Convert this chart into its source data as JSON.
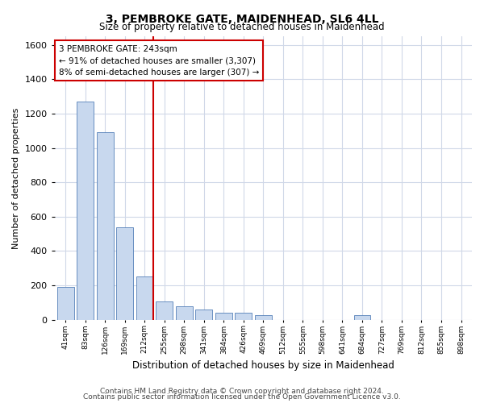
{
  "title": "3, PEMBROKE GATE, MAIDENHEAD, SL6 4LL",
  "subtitle": "Size of property relative to detached houses in Maidenhead",
  "xlabel": "Distribution of detached houses by size in Maidenhead",
  "ylabel": "Number of detached properties",
  "categories": [
    "41sqm",
    "83sqm",
    "126sqm",
    "169sqm",
    "212sqm",
    "255sqm",
    "298sqm",
    "341sqm",
    "384sqm",
    "426sqm",
    "469sqm",
    "512sqm",
    "555sqm",
    "598sqm",
    "641sqm",
    "684sqm",
    "727sqm",
    "769sqm",
    "812sqm",
    "855sqm",
    "898sqm"
  ],
  "values": [
    190,
    1270,
    1090,
    540,
    250,
    105,
    80,
    60,
    40,
    40,
    25,
    0,
    0,
    0,
    0,
    25,
    0,
    0,
    0,
    0,
    0
  ],
  "bar_color": "#c8d8ee",
  "bar_edge_color": "#5580b8",
  "marker_bin_index": 4,
  "marker_color": "#cc0000",
  "ylim": [
    0,
    1650
  ],
  "yticks": [
    0,
    200,
    400,
    600,
    800,
    1000,
    1200,
    1400,
    1600
  ],
  "annotation_line1": "3 PEMBROKE GATE: 243sqm",
  "annotation_line2": "← 91% of detached houses are smaller (3,307)",
  "annotation_line3": "8% of semi-detached houses are larger (307) →",
  "footnote1": "Contains HM Land Registry data © Crown copyright and database right 2024.",
  "footnote2": "Contains public sector information licensed under the Open Government Licence v3.0.",
  "bg_color": "#ffffff",
  "plot_bg_color": "#ffffff",
  "grid_color": "#d0d8e8"
}
